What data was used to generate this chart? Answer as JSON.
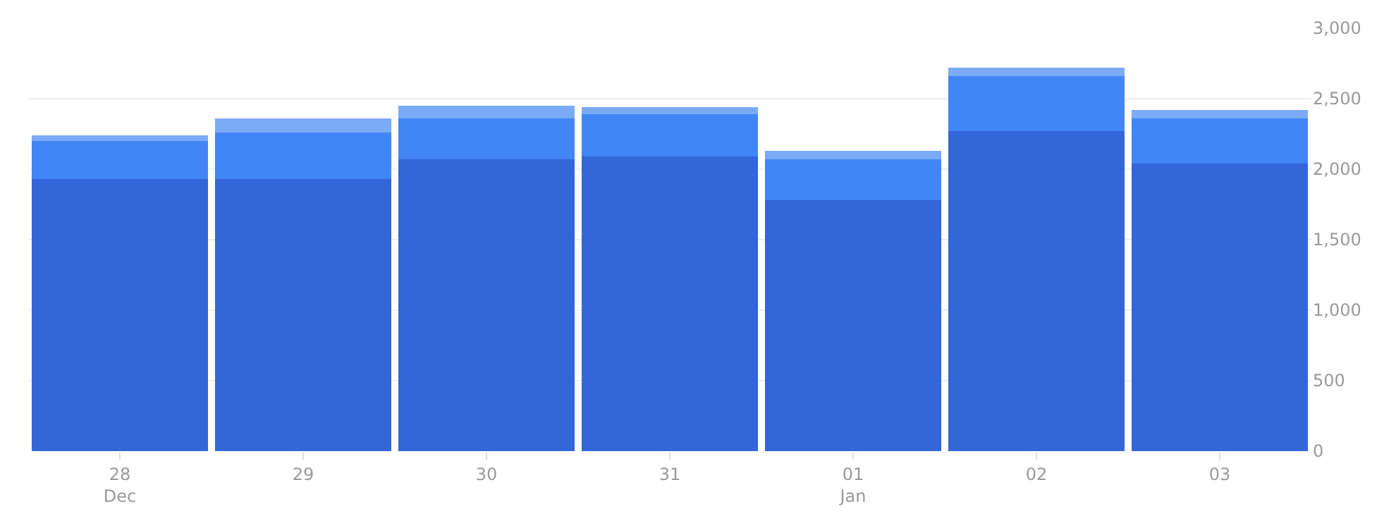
{
  "chart_data": {
    "type": "bar",
    "stacked": true,
    "categories": [
      "28\nDec",
      "29",
      "30",
      "31",
      "01\nJan",
      "02",
      "03"
    ],
    "series": [
      {
        "color": "#3366d6",
        "values": [
          1930,
          1930,
          2070,
          2090,
          1780,
          2270,
          2040
        ]
      },
      {
        "color": "#4285f4",
        "values": [
          270,
          330,
          290,
          300,
          290,
          390,
          320
        ]
      },
      {
        "color": "#7baaf7",
        "values": [
          40,
          100,
          90,
          50,
          60,
          60,
          60
        ]
      }
    ],
    "ylim": [
      0,
      3000
    ],
    "yticks": [
      0,
      {
        "value": 500,
        "label": "500"
      },
      {
        "value": 1000,
        "label": "1,000"
      },
      {
        "value": 1500,
        "label": "1,500"
      },
      {
        "value": 2000,
        "label": "2,000"
      },
      {
        "value": 2500,
        "label": "2,500"
      },
      {
        "value": 3000,
        "label": "3,000"
      }
    ],
    "grid": "y"
  }
}
